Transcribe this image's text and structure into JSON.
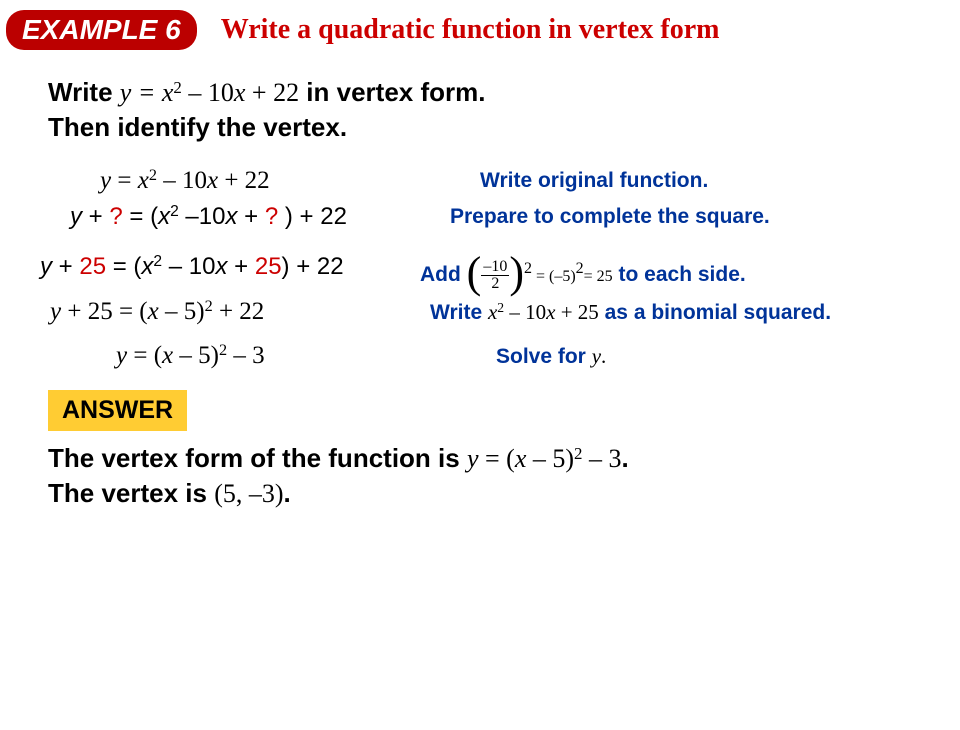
{
  "colors": {
    "badge_bg": "#bb0000",
    "badge_fg": "#ffffff",
    "title_fg": "#cc0000",
    "explain_fg": "#003399",
    "answer_bg": "#ffcc33",
    "red_text": "#cc0000"
  },
  "header": {
    "example_label": "EXAMPLE 6",
    "title": "Write a quadratic function in vertex form"
  },
  "problem": {
    "line1_prefix": "Write ",
    "line1_expr": "y = x² – 10x + 22",
    "line1_suffix": " in vertex form.",
    "line2": "Then identify the vertex."
  },
  "steps": [
    {
      "left_html": "<span class='mathit'>y</span> = <span class='mathit'>x</span><span class='sup-inline'>2</span> – 10<span class='mathit'>x</span> + 22",
      "right": "Write original function."
    },
    {
      "left_html": "<span class='mathit arial' style='font-style:italic'>y</span> + <span class='red'>?</span> <span class='arial'>=</span> (<span class='mathit arial' style='font-style:italic'>x</span><span class='sup-inline'>2</span> –10<span class='mathit arial' style='font-style:italic'>x</span> + <span class='red'>?</span> ) + 22",
      "right": "Prepare to complete the square."
    },
    {
      "left_html": "<span class='mathit arial' style='font-style:italic'>y</span> + <span class='red'>25</span> = (<span class='mathit arial' style='font-style:italic'>x</span><span class='sup-inline'>2</span> – 10<span class='mathit arial' style='font-style:italic'>x</span> + <span class='red'>25</span>) + 22",
      "right_html": "Add <span class='bigparen'>(</span><span class='frac'><span class='num'>–10</span><span class='den'>2</span></span><span class='bigparen'>)</span><span class='compact sup-inline'>2</span><span class='compact'> = (–5)</span><span class='compact sup-inline'>2</span><span class='compact'>= 25</span> to each side."
    },
    {
      "left_html": "<span class='mathit'>y</span> + 25 = (<span class='mathit'>x</span> – 5)<span class='sup-inline'>2</span> + 22",
      "right_html": "Write <span class='blackexpr'><span class='mathit'>x</span><span class='sup-inline mathup'>2</span> – 10<span class='mathit'>x</span> + 25</span> as a binomial squared."
    },
    {
      "left_html": "<span class='mathit'>y</span> = (<span class='mathit'>x</span> – 5)<span class='sup-inline'>2</span> – 3",
      "right_html": "Solve for <span class='blackexpr'><span class='mathit'>y</span>.</span>"
    }
  ],
  "answer": {
    "badge": "ANSWER",
    "line1_prefix": "The vertex form of the function is ",
    "line1_expr": "y = (x – 5)² – 3",
    "line1_suffix": ".",
    "line2_prefix": "The vertex is ",
    "line2_expr": "(5, –3)",
    "line2_suffix": "."
  }
}
